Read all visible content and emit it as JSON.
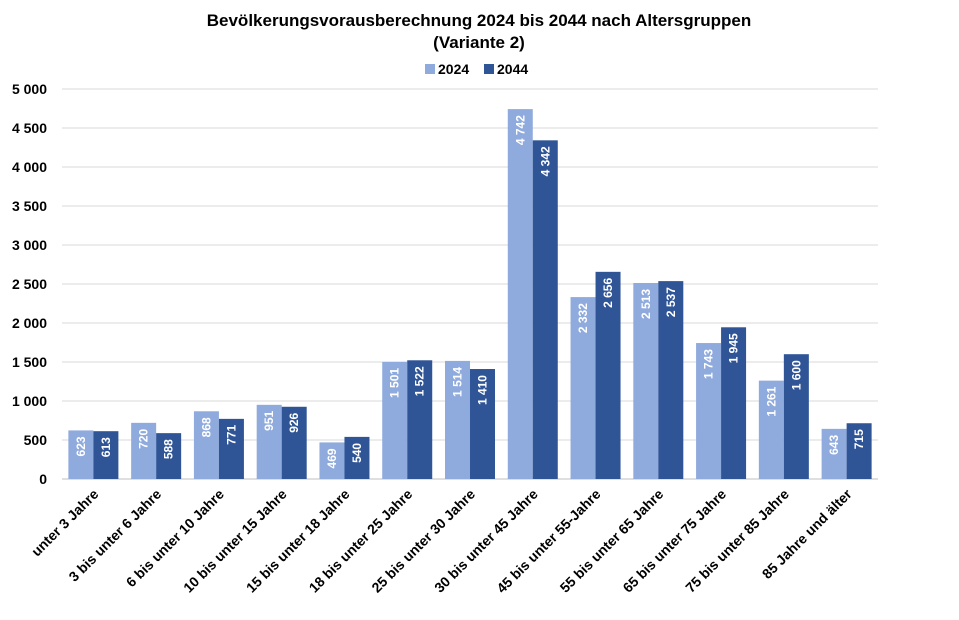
{
  "chart_data": {
    "type": "bar",
    "title": "Bevölkerungsvorausberechnung 2024 bis 2044 nach Altersgruppen",
    "subtitle": "(Variante 2)",
    "categories": [
      "unter 3 Jahre",
      "3 bis unter 6 Jahre",
      "6 bis unter 10 Jahre",
      "10 bis unter 15 Jahre",
      "15 bis unter 18 Jahre",
      "18 bis unter 25 Jahre",
      "25 bis unter 30 Jahre",
      "30 bis unter 45 Jahre",
      "45 bis unter 55-Jahre",
      "55 bis unter 65 Jahre",
      "65 bis unter 75 Jahre",
      "75 bis unter 85 Jahre",
      "85 Jahre und älter"
    ],
    "series": [
      {
        "name": "2024",
        "color": "#8faadc",
        "values": [
          623,
          720,
          868,
          951,
          469,
          1501,
          1514,
          4742,
          2332,
          2513,
          1743,
          1261,
          643
        ],
        "labels": [
          "623",
          "720",
          "868",
          "951",
          "469",
          "1 501",
          "1 514",
          "4 742",
          "2 332",
          "2 513",
          "1 743",
          "1 261",
          "643"
        ]
      },
      {
        "name": "2044",
        "color": "#2f5597",
        "values": [
          613,
          588,
          771,
          926,
          540,
          1522,
          1410,
          4342,
          2656,
          2537,
          1945,
          1600,
          715
        ],
        "labels": [
          "613",
          "588",
          "771",
          "926",
          "540",
          "1 522",
          "1 410",
          "4 342",
          "2 656",
          "2 537",
          "1 945",
          "1 600",
          "715"
        ]
      }
    ],
    "ylim": [
      0,
      5000
    ],
    "yticks": [
      0,
      500,
      1000,
      1500,
      2000,
      2500,
      3000,
      3500,
      4000,
      4500,
      5000
    ],
    "ytick_labels": [
      "0",
      "500",
      "1 000",
      "1 500",
      "2 000",
      "2 500",
      "3 000",
      "3 500",
      "4 000",
      "4 500",
      "5 000"
    ],
    "xlabel": "",
    "ylabel": "",
    "grid": true,
    "legend": "top-center"
  }
}
